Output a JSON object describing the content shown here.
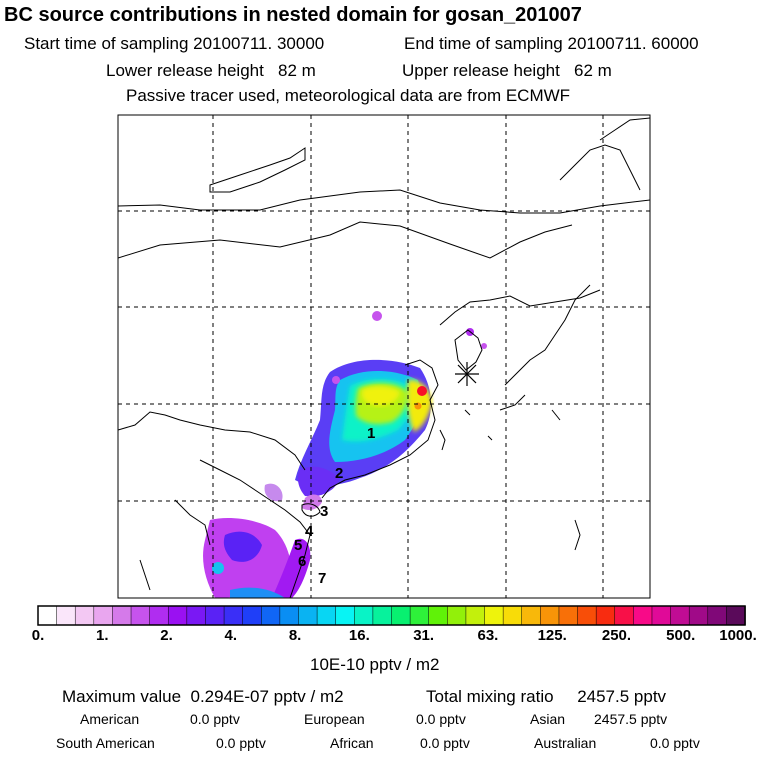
{
  "title": "BC  source contributions in nested domain for gosan_201007",
  "header": {
    "start_label": "Start time of sampling",
    "start_value": "20100711. 30000",
    "end_label": "End time of sampling",
    "end_value": "20100711. 60000",
    "lower_label": "Lower release height",
    "lower_value": "82 m",
    "upper_label": "Upper release height",
    "upper_value": "62 m",
    "note": "Passive tracer used, meteorological data are from ECMWF"
  },
  "map": {
    "region_labels": [
      "1",
      "2",
      "3",
      "4",
      "5",
      "6",
      "7"
    ],
    "receptor_marker": "star-receptor-icon",
    "gridlines": "dashed"
  },
  "colorbar": {
    "ticks": [
      "0.",
      "1.",
      "2.",
      "4.",
      "8.",
      "16.",
      "31.",
      "63.",
      "125.",
      "250.",
      "500.",
      "1000."
    ],
    "colors": [
      "#ffffff",
      "#fae6fa",
      "#f3c8f3",
      "#e9a6ef",
      "#d57aea",
      "#c653ed",
      "#b02df0",
      "#9a11f2",
      "#7a18f4",
      "#5a22f5",
      "#3a2ff7",
      "#1f3ff8",
      "#1066f5",
      "#0a8ef3",
      "#0ab3f2",
      "#08d6f3",
      "#08f4f4",
      "#09f3c6",
      "#07f29c",
      "#08f070",
      "#2ef13a",
      "#60f208",
      "#92f00a",
      "#c3f00c",
      "#eef30c",
      "#f8dc08",
      "#f8b80a",
      "#f89408",
      "#f87008",
      "#f84e08",
      "#f82c10",
      "#f81048",
      "#f80a88",
      "#e00a98",
      "#c00c94",
      "#a00a88",
      "#800878",
      "#5a0a5a"
    ],
    "units": "10E-10 pptv / m2"
  },
  "stats": {
    "max_label": "Maximum value",
    "max_value": "0.294E-07 pptv / m2",
    "total_label": "Total mixing ratio",
    "total_value": "2457.5 pptv",
    "regions": [
      {
        "name": "American",
        "value": "0.0 pptv"
      },
      {
        "name": "European",
        "value": "0.0 pptv"
      },
      {
        "name": "Asian",
        "value": "2457.5 pptv"
      },
      {
        "name": "South American",
        "value": "0.0 pptv"
      },
      {
        "name": "African",
        "value": "0.0 pptv"
      },
      {
        "name": "Australian",
        "value": "0.0 pptv"
      }
    ]
  }
}
